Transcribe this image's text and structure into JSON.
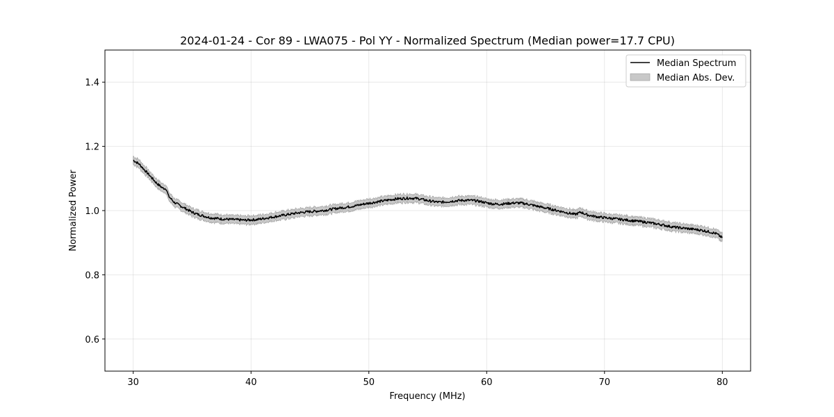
{
  "chart_data": {
    "type": "line",
    "title": "2024-01-24 - Cor 89 - LWA075 - Pol YY - Normalized Spectrum (Median power=17.7 CPU)",
    "xlabel": "Frequency (MHz)",
    "ylabel": "Normalized Power",
    "xlim": [
      27.6,
      82.4
    ],
    "ylim": [
      0.5,
      1.5
    ],
    "xticks": [
      30,
      40,
      50,
      60,
      70,
      80
    ],
    "xtick_labels": [
      "30",
      "40",
      "50",
      "60",
      "70",
      "80"
    ],
    "yticks": [
      0.6,
      0.8,
      1.0,
      1.2,
      1.4
    ],
    "ytick_labels": [
      "0.6",
      "0.8",
      "1.0",
      "1.2",
      "1.4"
    ],
    "grid": true,
    "legend_position": "top-right",
    "legend": [
      {
        "label": "Median Spectrum",
        "kind": "line",
        "color": "#000000"
      },
      {
        "label": "Median Abs. Dev.",
        "kind": "band",
        "color": "#b0b0b0"
      }
    ],
    "series": [
      {
        "name": "Median Spectrum",
        "color": "#000000",
        "band_color": "#b0b0b0",
        "band_halfwidth": 0.012,
        "x": [
          30,
          30.5,
          31,
          31.5,
          32,
          32.5,
          32.8,
          33,
          33.5,
          34,
          34.5,
          35,
          35.5,
          36,
          36.5,
          37,
          37.5,
          38,
          38.5,
          39,
          39.5,
          40,
          40.5,
          41,
          41.5,
          42,
          42.5,
          43,
          43.5,
          44,
          44.5,
          45,
          45.5,
          46,
          46.5,
          47,
          47.5,
          48,
          48.5,
          49,
          49.5,
          50,
          50.5,
          51,
          51.5,
          52,
          52.5,
          53,
          53.5,
          54,
          54.5,
          55,
          55.5,
          56,
          56.5,
          57,
          57.5,
          58,
          58.5,
          59,
          59.5,
          60,
          60.5,
          61,
          61.5,
          62,
          62.5,
          63,
          63.5,
          64,
          64.5,
          65,
          65.5,
          66,
          66.5,
          67,
          67.5,
          68,
          68.5,
          69,
          69.5,
          70,
          70.5,
          71,
          71.5,
          72,
          72.5,
          73,
          73.5,
          74,
          74.5,
          75,
          75.5,
          76,
          76.5,
          77,
          77.5,
          78,
          78.5,
          79,
          79.5,
          80
        ],
        "values": [
          1.157,
          1.145,
          1.125,
          1.105,
          1.085,
          1.07,
          1.068,
          1.045,
          1.025,
          1.015,
          1.005,
          0.995,
          0.988,
          0.983,
          0.978,
          0.976,
          0.974,
          0.973,
          0.972,
          0.971,
          0.97,
          0.971,
          0.972,
          0.975,
          0.978,
          0.981,
          0.984,
          0.987,
          0.99,
          0.993,
          0.995,
          0.997,
          0.998,
          1.0,
          1.002,
          1.005,
          1.008,
          1.01,
          1.013,
          1.016,
          1.02,
          1.023,
          1.026,
          1.029,
          1.032,
          1.035,
          1.037,
          1.038,
          1.039,
          1.038,
          1.035,
          1.031,
          1.028,
          1.026,
          1.027,
          1.029,
          1.031,
          1.032,
          1.032,
          1.031,
          1.028,
          1.024,
          1.021,
          1.02,
          1.021,
          1.023,
          1.024,
          1.023,
          1.02,
          1.016,
          1.012,
          1.008,
          1.004,
          1.0,
          0.996,
          0.992,
          0.988,
          0.995,
          0.987,
          0.983,
          0.98,
          0.978,
          0.976,
          0.974,
          0.972,
          0.97,
          0.968,
          0.966,
          0.964,
          0.961,
          0.958,
          0.955,
          0.951,
          0.948,
          0.946,
          0.944,
          0.942,
          0.94,
          0.937,
          0.933,
          0.928,
          0.915
        ]
      }
    ]
  }
}
